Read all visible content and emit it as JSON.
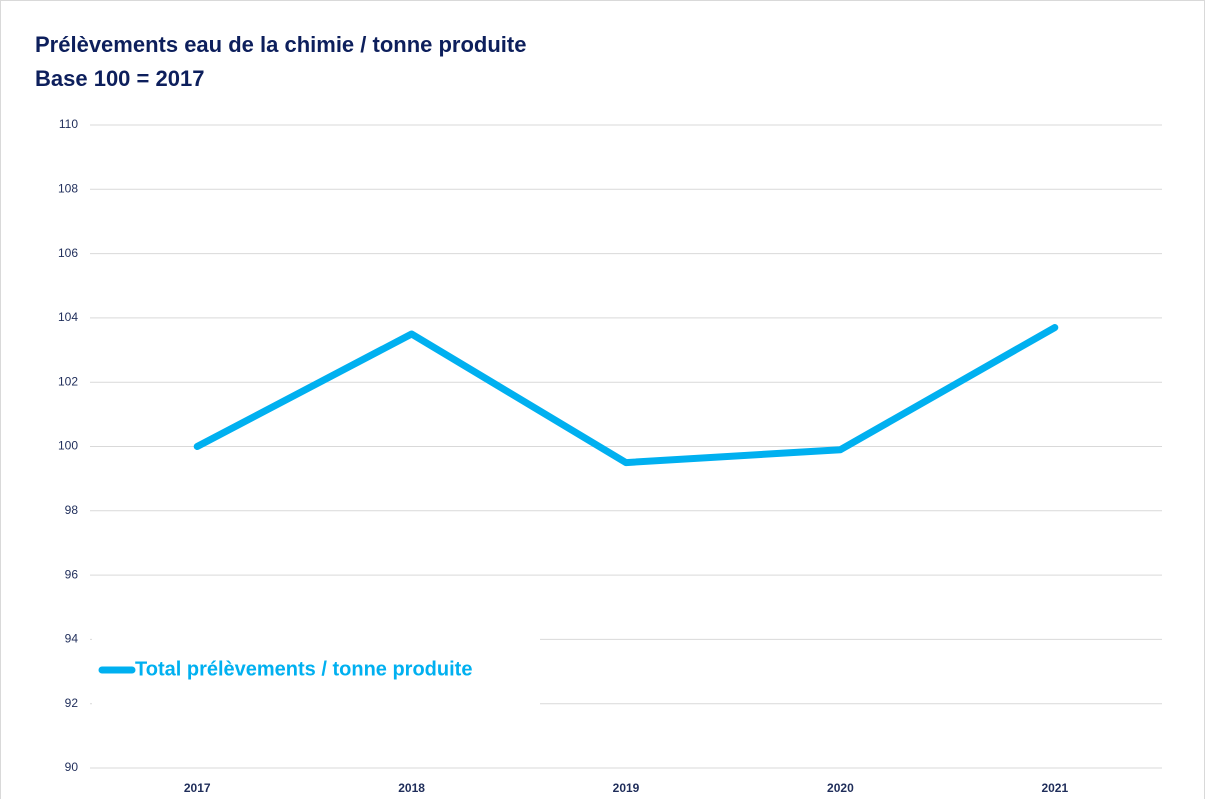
{
  "chart_data": {
    "type": "line",
    "title": "Prélèvements eau de la chimie / tonne produite",
    "subtitle": "Base 100 = 2017",
    "categories": [
      "2017",
      "2018",
      "2019",
      "2020",
      "2021"
    ],
    "series": [
      {
        "name": "Total prélèvements / tonne produite",
        "color": "#00b0f0",
        "values": [
          100,
          103.5,
          99.5,
          99.9,
          103.7
        ]
      }
    ],
    "ylim": [
      90,
      110
    ],
    "yticks": [
      90,
      92,
      94,
      96,
      98,
      100,
      102,
      104,
      106,
      108,
      110
    ],
    "grid": true,
    "legend": "lower left"
  }
}
